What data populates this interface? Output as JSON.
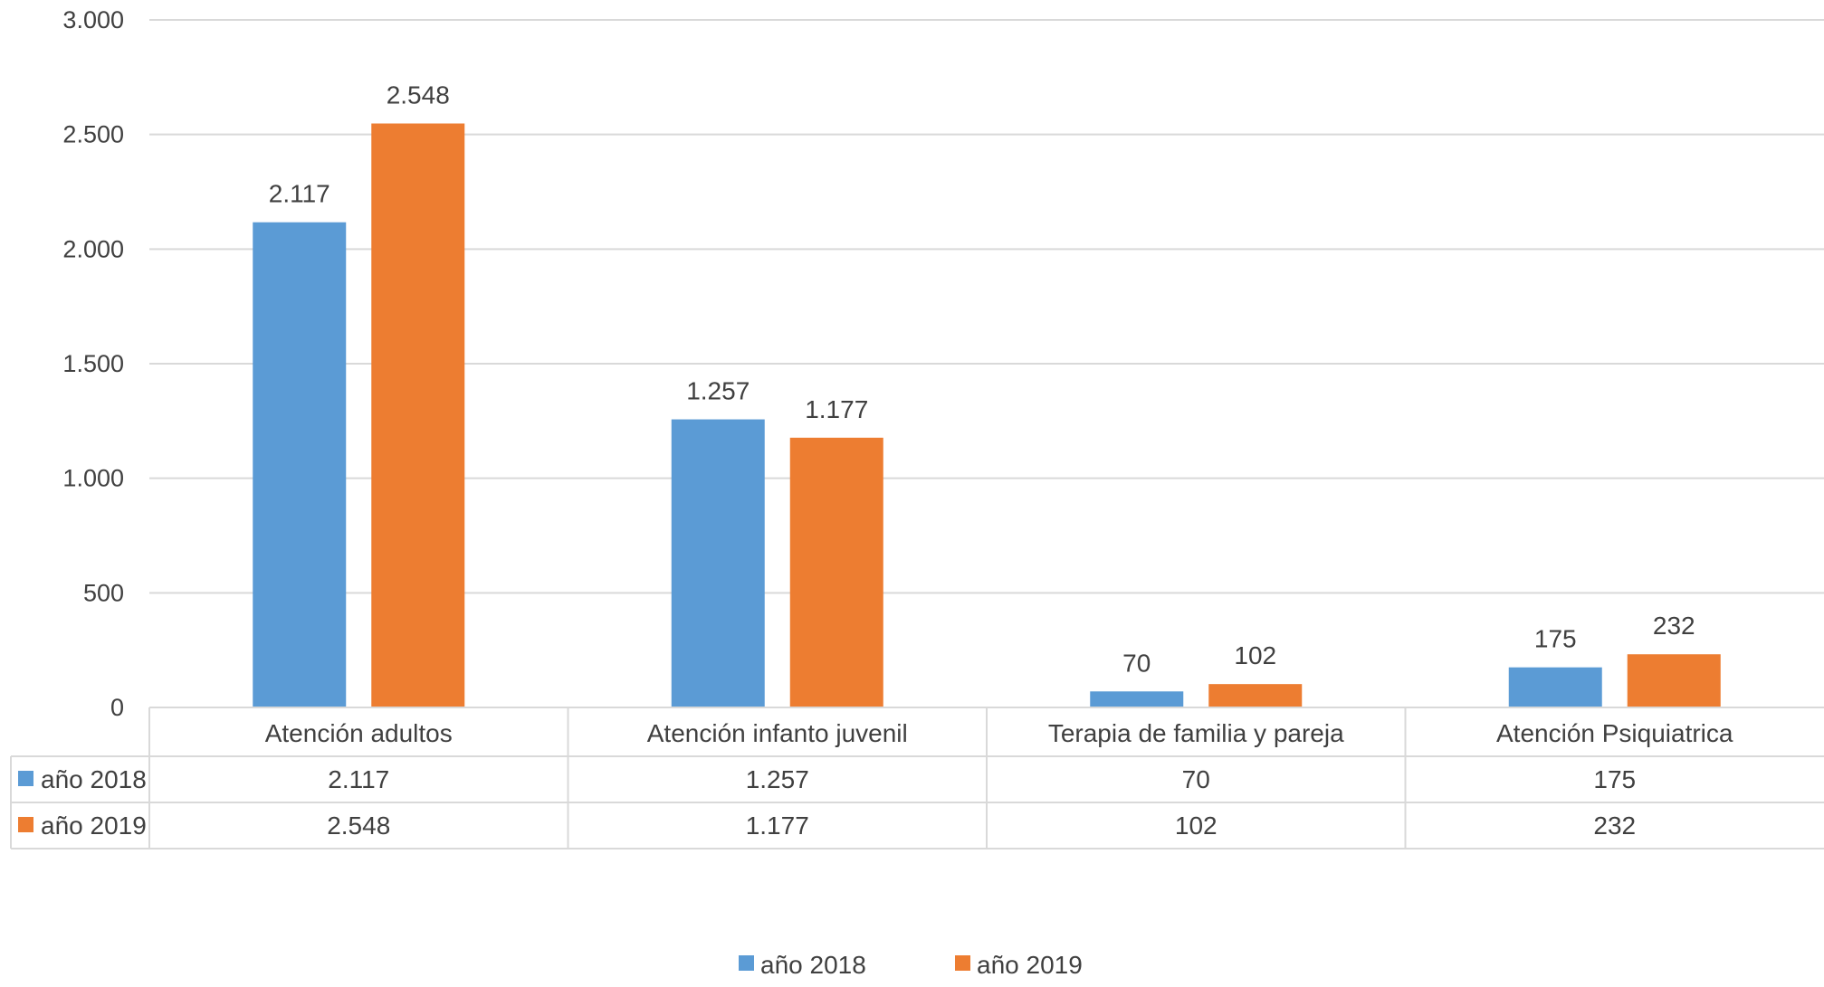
{
  "chart_data": {
    "type": "bar",
    "categories": [
      "Atención adultos",
      "Atención infanto juvenil",
      "Terapia de familia y pareja",
      "Atención Psiquiatrica"
    ],
    "series": [
      {
        "name": "año 2018",
        "color": "#5B9BD5",
        "values": [
          2117,
          1257,
          70,
          175
        ],
        "labels": [
          "2.117",
          "1.257",
          "70",
          "175"
        ]
      },
      {
        "name": "año 2019",
        "color": "#ED7D31",
        "values": [
          2548,
          1177,
          102,
          232
        ],
        "labels": [
          "2.548",
          "1.177",
          "102",
          "232"
        ]
      }
    ],
    "ylim": [
      0,
      3000
    ],
    "yticks": [
      {
        "value": 0,
        "label": "0"
      },
      {
        "value": 500,
        "label": "500"
      },
      {
        "value": 1000,
        "label": "1.000"
      },
      {
        "value": 1500,
        "label": "1.500"
      },
      {
        "value": 2000,
        "label": "2.000"
      },
      {
        "value": 2500,
        "label": "2.500"
      },
      {
        "value": 3000,
        "label": "3.000"
      }
    ],
    "grid": true,
    "data_table": true,
    "legend_position": "bottom",
    "title": "",
    "xlabel": "",
    "ylabel": ""
  }
}
